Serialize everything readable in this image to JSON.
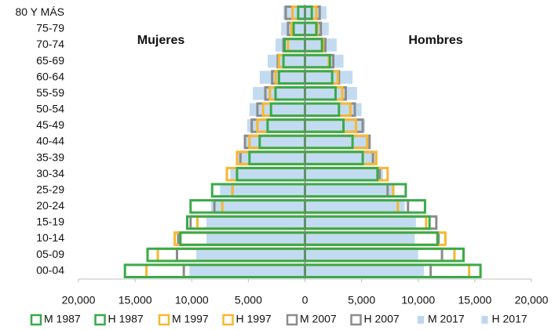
{
  "chart_data": {
    "type": "bar",
    "orientation": "horizontal",
    "categories": [
      "00-04",
      "05-09",
      "10-14",
      "15-19",
      "20-24",
      "25-29",
      "30-34",
      "35-39",
      "40-44",
      "45-49",
      "50-54",
      "55-59",
      "60-64",
      "65-69",
      "70-74",
      "75-79",
      "80 Y MÁS"
    ],
    "annotations": [
      "Mujeres",
      "Hombres"
    ],
    "xlim": [
      -20000,
      20000
    ],
    "xticks": [
      {
        "value": -20000,
        "label": "20,000"
      },
      {
        "value": -15000,
        "label": "15,000"
      },
      {
        "value": -10000,
        "label": "10,000"
      },
      {
        "value": -5000,
        "label": "5,000"
      },
      0,
      {
        "value": 5000,
        "label": "5,000"
      },
      {
        "value": 10000,
        "label": "10,000"
      },
      {
        "value": 15000,
        "label": "15,000"
      },
      {
        "value": 20000,
        "label": "20,000"
      }
    ],
    "series": [
      {
        "name": "M 1987",
        "color": "#3aaa48",
        "style": "outline",
        "values": [
          -15900,
          -13900,
          -11000,
          -10400,
          -10100,
          -8200,
          -6000,
          -4900,
          -4000,
          -3300,
          -3000,
          -2600,
          -2300,
          -1900,
          -1800,
          -1000,
          -600
        ]
      },
      {
        "name": "H 1987",
        "color": "#3aaa48",
        "style": "outline",
        "values": [
          15500,
          14000,
          11700,
          11000,
          10600,
          8900,
          6400,
          5100,
          4200,
          3400,
          3000,
          2700,
          2400,
          2200,
          1500,
          1000,
          600
        ]
      },
      {
        "name": "M 1997",
        "color": "#f7b731",
        "style": "outline",
        "values": [
          -14000,
          -13000,
          -11500,
          -9500,
          -7300,
          -6400,
          -6900,
          -6000,
          -4900,
          -4200,
          -3700,
          -3100,
          -2600,
          -2300,
          -1500,
          -1200,
          -1100
        ]
      },
      {
        "name": "H 1997",
        "color": "#f7b731",
        "style": "outline",
        "values": [
          14500,
          13200,
          12400,
          10700,
          8200,
          7800,
          7300,
          6300,
          5500,
          4500,
          4000,
          3300,
          2900,
          2100,
          1600,
          1100,
          1000
        ]
      },
      {
        "name": "M 2007",
        "color": "#8c8c8c",
        "style": "outline",
        "values": [
          -10700,
          -11300,
          -11200,
          -10100,
          -8000,
          -6400,
          -6000,
          -5700,
          -5300,
          -4700,
          -4200,
          -3500,
          -2900,
          -2400,
          -1900,
          -1500,
          -1700
        ]
      },
      {
        "name": "H 2007",
        "color": "#8c8c8c",
        "style": "outline",
        "values": [
          11100,
          12100,
          11800,
          11600,
          9100,
          7300,
          6600,
          6000,
          5700,
          5100,
          4400,
          3600,
          3000,
          2500,
          1800,
          1400,
          1300
        ]
      },
      {
        "name": "M 2017",
        "color": "#bdd7ee",
        "style": "fill",
        "values": [
          -10200,
          -9600,
          -8700,
          -8700,
          -8300,
          -7500,
          -6600,
          -6100,
          -5400,
          -5100,
          -4900,
          -4600,
          -4000,
          -3300,
          -2600,
          -2100,
          -1900
        ]
      },
      {
        "name": "H 2017",
        "color": "#bdd7ee",
        "style": "fill",
        "values": [
          10500,
          10000,
          9700,
          9800,
          8800,
          7800,
          6900,
          6200,
          5800,
          5300,
          5000,
          4600,
          4200,
          3400,
          2800,
          2100,
          1900
        ]
      }
    ]
  }
}
